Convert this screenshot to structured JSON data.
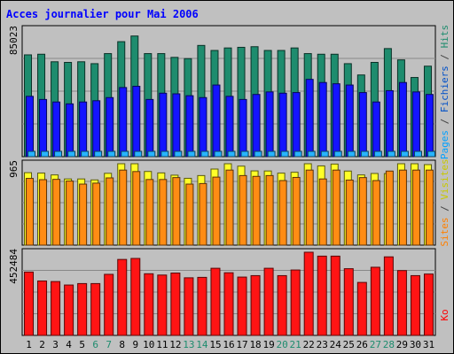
{
  "title": "Acces journalier pour Mai 2006",
  "right_labels": {
    "top": [
      {
        "text": "Pages",
        "color": "#00a0ff"
      },
      {
        "text": " / ",
        "color": "#404040"
      },
      {
        "text": "Fichiers",
        "color": "#0050c8"
      },
      {
        "text": " / ",
        "color": "#404040"
      },
      {
        "text": "Hits",
        "color": "#1e8c6e"
      }
    ],
    "middle": [
      {
        "text": "Sites",
        "color": "#ff8000"
      },
      {
        "text": " / ",
        "color": "#404040"
      },
      {
        "text": "Visites",
        "color": "#c8c800"
      }
    ],
    "bottom": [
      {
        "text": "Ko",
        "color": "#ff0000"
      }
    ]
  },
  "chart_data": [
    {
      "type": "bar",
      "panel": "top",
      "y_max_label": "85023",
      "categories": [
        "1",
        "2",
        "3",
        "4",
        "5",
        "6",
        "7",
        "8",
        "9",
        "10",
        "11",
        "12",
        "13",
        "14",
        "15",
        "16",
        "17",
        "18",
        "19",
        "20",
        "21",
        "22",
        "23",
        "24",
        "25",
        "26",
        "27",
        "28",
        "29",
        "30",
        "31"
      ],
      "weekend_days": [
        "6",
        "7",
        "13",
        "14",
        "20",
        "21",
        "27",
        "28"
      ],
      "series": [
        {
          "name": "Hits",
          "color": "#1e8c6e",
          "values": [
            81000,
            81500,
            75500,
            75000,
            75500,
            74000,
            82000,
            91500,
            96000,
            82000,
            82000,
            79000,
            78000,
            88500,
            84500,
            86500,
            87000,
            87500,
            84500,
            84500,
            86500,
            82000,
            81500,
            81500,
            74000,
            65000,
            75000,
            86000,
            77000,
            63000,
            72000
          ]
        },
        {
          "name": "Fichiers",
          "color": "#1414ff",
          "values": [
            48000,
            45500,
            43500,
            42000,
            43500,
            44500,
            47000,
            55000,
            56000,
            45500,
            50500,
            50000,
            48500,
            47000,
            57000,
            48000,
            45500,
            49500,
            51500,
            50500,
            51000,
            61500,
            59000,
            58000,
            57000,
            51000,
            43500,
            52500,
            59000,
            51500,
            49500
          ]
        },
        {
          "name": "Pages",
          "color": "#28b4ff",
          "values": [
            3200,
            3200,
            3200,
            3200,
            3200,
            3200,
            3200,
            3200,
            3200,
            3200,
            3200,
            3200,
            3200,
            3200,
            3200,
            3200,
            3200,
            3200,
            3200,
            3200,
            3200,
            3200,
            3200,
            3200,
            3200,
            3200,
            3200,
            3200,
            3200,
            3200,
            3200
          ]
        }
      ]
    },
    {
      "type": "bar",
      "panel": "middle",
      "y_max_label": "965",
      "series": [
        {
          "name": "Visites",
          "color": "#ffff28",
          "values": [
            900,
            895,
            872,
            822,
            822,
            810,
            892,
            1011,
            1011,
            915,
            897,
            869,
            830,
            864,
            945,
            1011,
            981,
            922,
            921,
            894,
            905,
            1011,
            984,
            1007,
            920,
            872,
            890,
            889,
            1011,
            1011,
            1000
          ]
        },
        {
          "name": "Sites",
          "color": "#ff8c14",
          "values": [
            829,
            813,
            817,
            796,
            758,
            770,
            835,
            932,
            914,
            815,
            815,
            839,
            758,
            765,
            845,
            932,
            864,
            854,
            864,
            802,
            841,
            932,
            822,
            932,
            808,
            839,
            802,
            920,
            932,
            932,
            932
          ]
        }
      ]
    },
    {
      "type": "bar",
      "panel": "bottom",
      "y_max_label": "452484",
      "series": [
        {
          "name": "Ko",
          "color": "#ff1414",
          "values": [
            439000,
            377000,
            373000,
            349000,
            359000,
            359000,
            423000,
            526000,
            533000,
            427000,
            418000,
            432000,
            399000,
            402000,
            465000,
            434000,
            404000,
            414000,
            465000,
            414000,
            453000,
            576000,
            549000,
            549000,
            462000,
            367000,
            472000,
            544000,
            449000,
            414000,
            425000
          ]
        }
      ]
    }
  ]
}
